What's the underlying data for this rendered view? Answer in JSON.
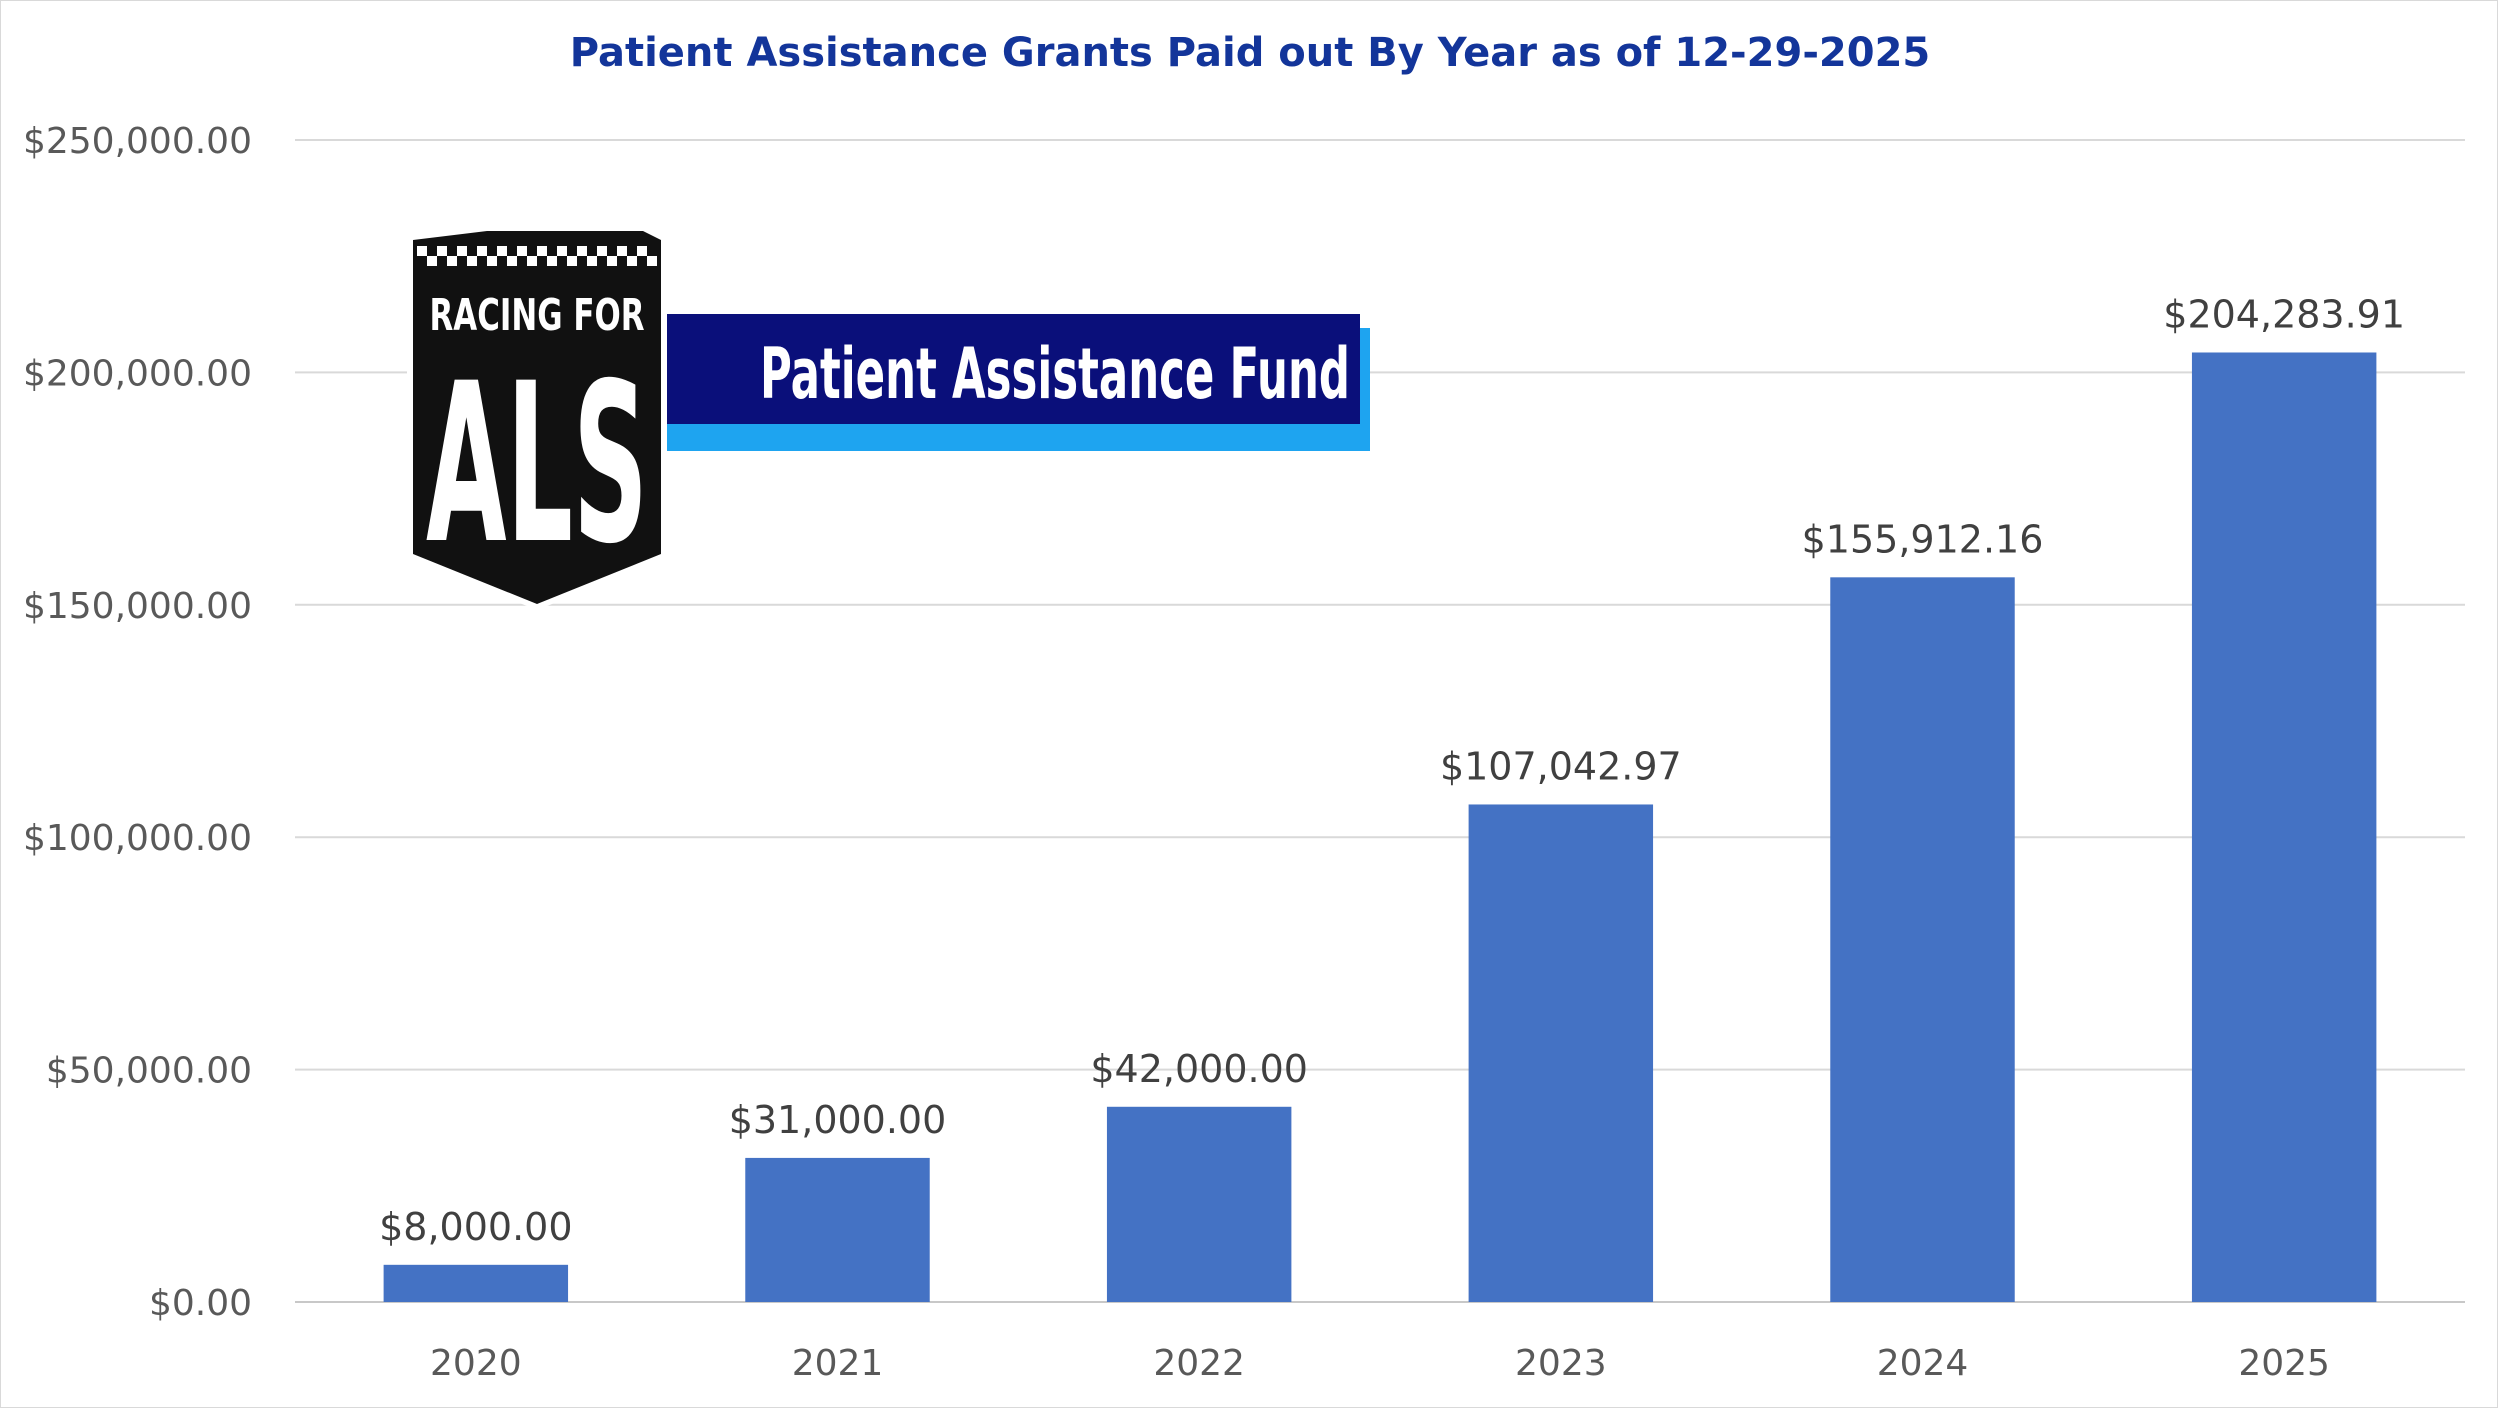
{
  "chart_data": {
    "type": "bar",
    "title": "Patient Assistance Grants Paid out By Year as of 12-29-2025",
    "categories": [
      "2020",
      "2021",
      "2022",
      "2023",
      "2024",
      "2025"
    ],
    "values": [
      8000.0,
      31000.0,
      42000.0,
      107042.97,
      155912.16,
      204283.91
    ],
    "data_labels": [
      "$8,000.00",
      "$31,000.00",
      "$42,000.00",
      "$107,042.97",
      "$155,912.16",
      "$204,283.91"
    ],
    "y_ticks": [
      0,
      50000,
      100000,
      150000,
      200000,
      250000
    ],
    "y_tick_labels": [
      "$0.00",
      "$50,000.00",
      "$100,000.00",
      "$150,000.00",
      "$200,000.00",
      "$250,000.00"
    ],
    "ylim": [
      0,
      250000
    ],
    "grid": true,
    "bar_color": "#4472c4"
  },
  "logo": {
    "line1": "RACING FOR",
    "line2": "ALS",
    "banner": "Patient Assistance Fund",
    "colors": {
      "navy": "#0a0f7a",
      "light_blue": "#1ea4f0",
      "shield": "#111111"
    }
  }
}
